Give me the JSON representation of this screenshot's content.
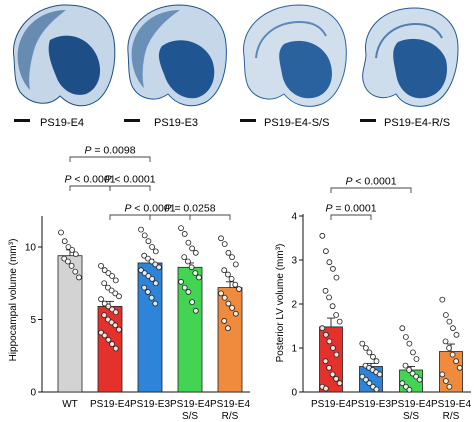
{
  "brain_panels": [
    {
      "label": "PS19-E4",
      "tissue_color": "#7da4c9",
      "stain_color": "#1d4f86"
    },
    {
      "label": "PS19-E3",
      "tissue_color": "#7fa6cb",
      "stain_color": "#1f5590"
    },
    {
      "label": "PS19-E4-S/S",
      "tissue_color": "#9ab8d6",
      "stain_color": "#2a62a0"
    },
    {
      "label": "PS19-E4-R/S",
      "tissue_color": "#93b3d2",
      "stain_color": "#245b96"
    }
  ],
  "chart_data": [
    {
      "type": "bar",
      "ylabel": "Hippocampal volume (mm³)",
      "ylim": [
        0,
        12
      ],
      "yticks": [
        0,
        5,
        10
      ],
      "categories": [
        "WT",
        "PS19-E4",
        "PS19-E3",
        "PS19-E4 S/S",
        "PS19-E4 R/S"
      ],
      "category_lines": [
        [
          "WT"
        ],
        [
          "PS19-E4"
        ],
        [
          "PS19-E3"
        ],
        [
          "PS19-E4",
          "S/S"
        ],
        [
          "PS19-E4",
          "R/S"
        ]
      ],
      "values": [
        9.4,
        5.9,
        8.9,
        8.6,
        7.2
      ],
      "sem": [
        0.4,
        0.35,
        0.25,
        0.3,
        0.4
      ],
      "colors": [
        "#d3d3d3",
        "#e5312b",
        "#2e84d8",
        "#43d454",
        "#f08a3c"
      ],
      "points": [
        [
          11.0,
          10.4,
          10.0,
          9.8,
          9.5,
          9.2,
          9.0,
          8.7,
          8.3,
          7.9
        ],
        [
          8.7,
          8.4,
          8.2,
          8.0,
          7.7,
          7.5,
          7.2,
          7.0,
          6.8,
          6.6,
          6.4,
          6.1,
          5.9,
          5.7,
          5.5,
          5.3,
          5.0,
          4.8,
          4.6,
          4.3,
          4.1,
          3.9,
          3.6,
          3.3,
          3.0
        ],
        [
          11.2,
          10.8,
          10.4,
          10.0,
          9.7,
          9.4,
          9.2,
          9.0,
          8.8,
          8.6,
          8.4,
          8.2,
          8.0,
          7.8,
          7.5,
          7.2,
          6.9,
          6.5,
          6.1
        ],
        [
          11.3,
          10.9,
          10.3,
          9.9,
          9.6,
          9.3,
          9.0,
          8.6,
          8.2,
          7.9,
          7.6,
          7.2,
          6.9,
          6.2,
          5.6
        ],
        [
          10.6,
          10.2,
          9.6,
          9.3,
          8.8,
          8.4,
          8.1,
          7.8,
          7.4,
          7.1,
          6.8,
          6.5,
          6.1,
          5.8,
          5.4,
          4.9,
          4.4
        ]
      ],
      "comparisons": [
        {
          "label": "P = 0.0098",
          "from": 0,
          "to": 2
        },
        {
          "label": "P < 0.0001",
          "from": 0,
          "to": 1
        },
        {
          "label": "P < 0.0001",
          "from": 1,
          "to": 3
        },
        {
          "label": "P < 0.0001",
          "from": 1,
          "to": 2
        },
        {
          "label": "P = 0.0258",
          "from": 2,
          "to": 4
        }
      ]
    },
    {
      "type": "bar",
      "ylabel": "Posterior LV volume (mm³)",
      "ylim": [
        0,
        4
      ],
      "yticks": [
        0,
        1,
        2,
        3,
        4
      ],
      "categories": [
        "PS19-E4",
        "PS19-E3",
        "PS19-E4 S/S",
        "PS19-E4 R/S"
      ],
      "category_lines": [
        [
          "PS19-E4"
        ],
        [
          "PS19-E3"
        ],
        [
          "PS19-E4",
          "S/S"
        ],
        [
          "PS19-E4",
          "R/S"
        ]
      ],
      "values": [
        1.48,
        0.58,
        0.5,
        0.92
      ],
      "sem": [
        0.2,
        0.07,
        0.08,
        0.17
      ],
      "colors": [
        "#e5312b",
        "#2e84d8",
        "#43d454",
        "#f08a3c"
      ],
      "points": [
        [
          3.55,
          3.2,
          2.95,
          2.8,
          2.6,
          2.3,
          2.15,
          1.95,
          1.75,
          1.6,
          1.45,
          1.3,
          1.15,
          1.0,
          0.85,
          0.7,
          0.55,
          0.4,
          0.3,
          0.2,
          0.12,
          0.08
        ],
        [
          1.1,
          1.0,
          0.9,
          0.8,
          0.7,
          0.6,
          0.55,
          0.5,
          0.45,
          0.4,
          0.35,
          0.28,
          0.2,
          0.12,
          0.06
        ],
        [
          1.45,
          1.25,
          1.1,
          0.9,
          0.75,
          0.6,
          0.5,
          0.42,
          0.35,
          0.28,
          0.2,
          0.12,
          0.05
        ],
        [
          2.1,
          1.75,
          1.6,
          1.45,
          1.3,
          1.15,
          1.0,
          0.85,
          0.7,
          0.55,
          0.4,
          0.25,
          0.12
        ]
      ],
      "comparisons": [
        {
          "label": "P < 0.0001",
          "from": 0,
          "to": 2
        },
        {
          "label": "P = 0.0001",
          "from": 0,
          "to": 1
        }
      ]
    }
  ]
}
